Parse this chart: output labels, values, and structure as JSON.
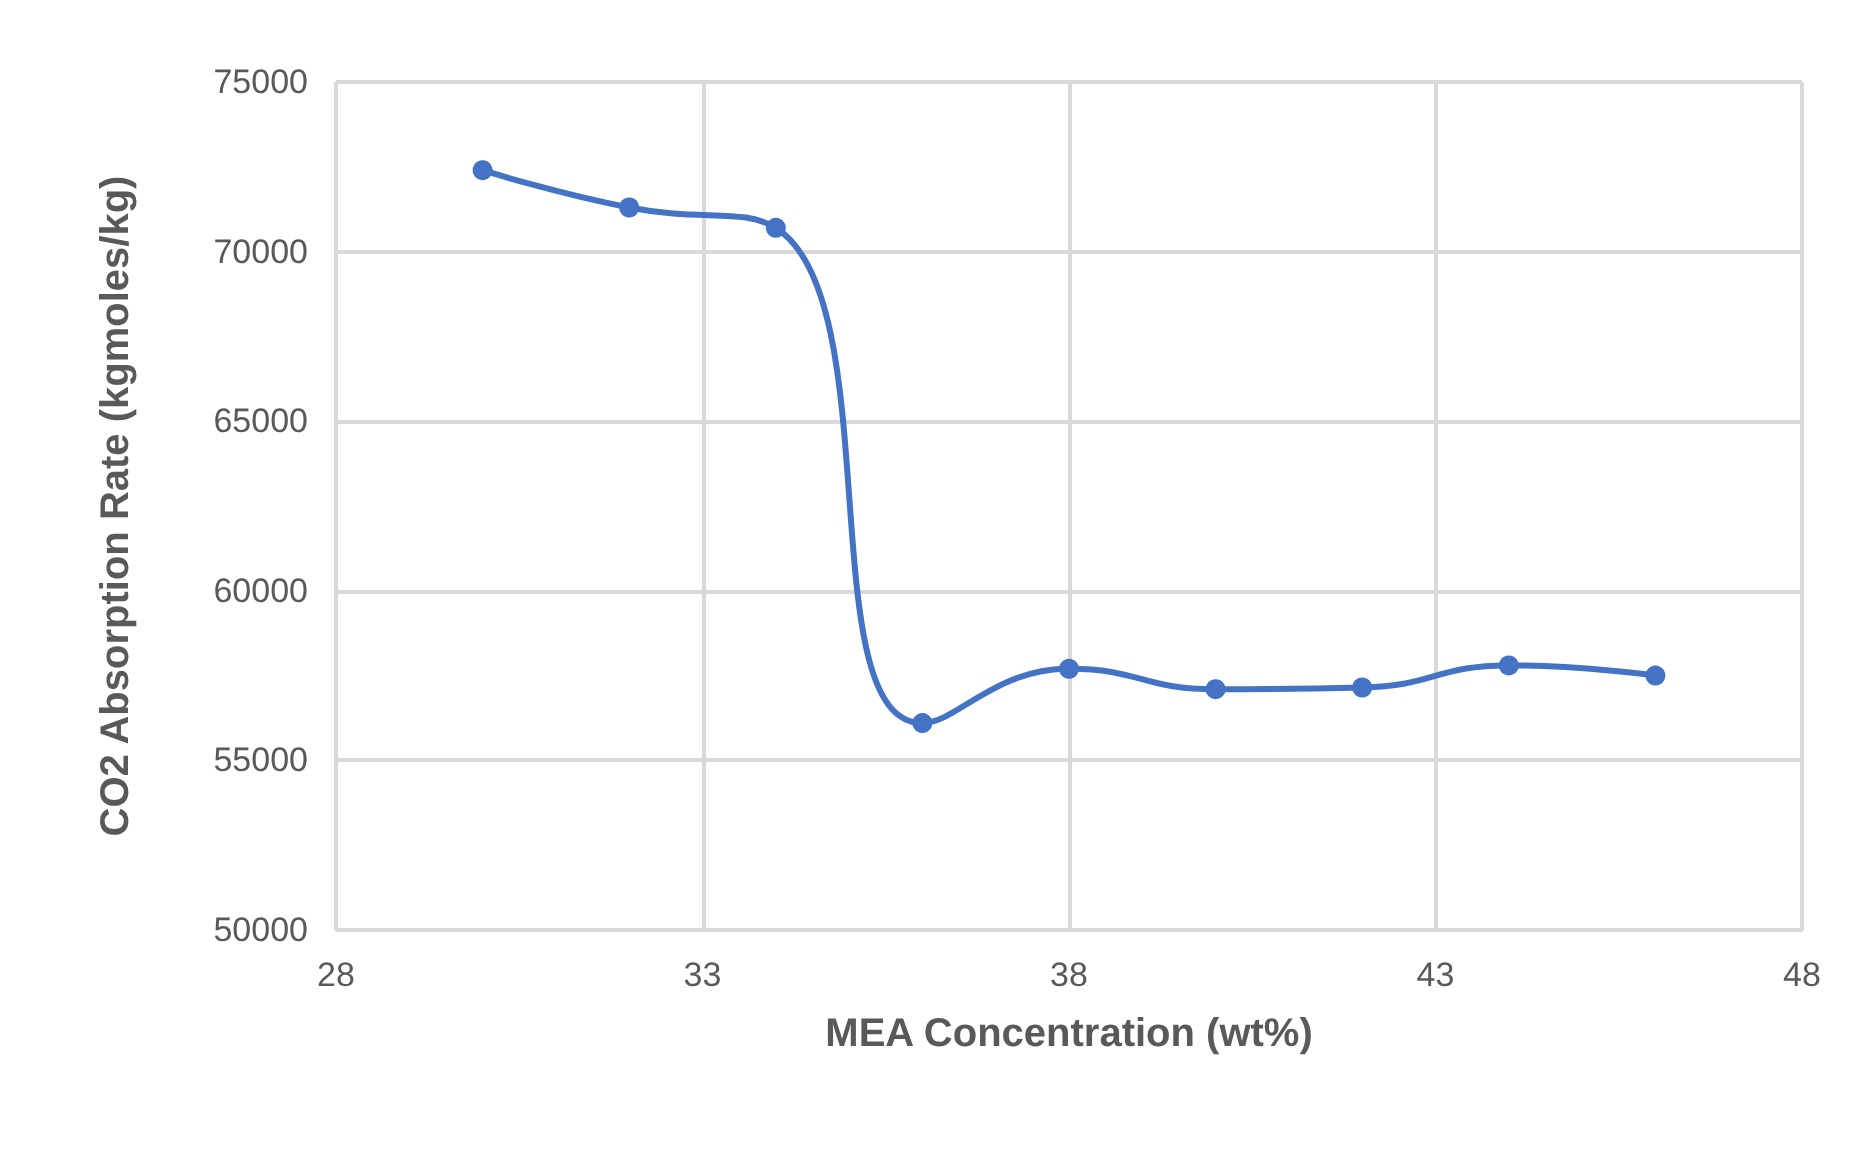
{
  "chart_data": {
    "type": "line",
    "xlabel": "MEA Concentration (wt%)",
    "ylabel": "CO2 Absorption Rate (kgmoles/kg)",
    "x": [
      30,
      32,
      34,
      36,
      38,
      40,
      42,
      44,
      46
    ],
    "series": [
      {
        "color": "#4472c4",
        "values": [
          72400,
          71300,
          70700,
          56100,
          57700,
          57100,
          57150,
          57800,
          57500
        ]
      }
    ],
    "xlim": [
      28,
      48
    ],
    "xticks": [
      28,
      33,
      38,
      43,
      48
    ],
    "ylim": [
      50000,
      75000
    ],
    "yticks": [
      50000,
      55000,
      60000,
      65000,
      70000,
      75000
    ],
    "grid": true,
    "marker": "circle",
    "line_style": "solid"
  }
}
